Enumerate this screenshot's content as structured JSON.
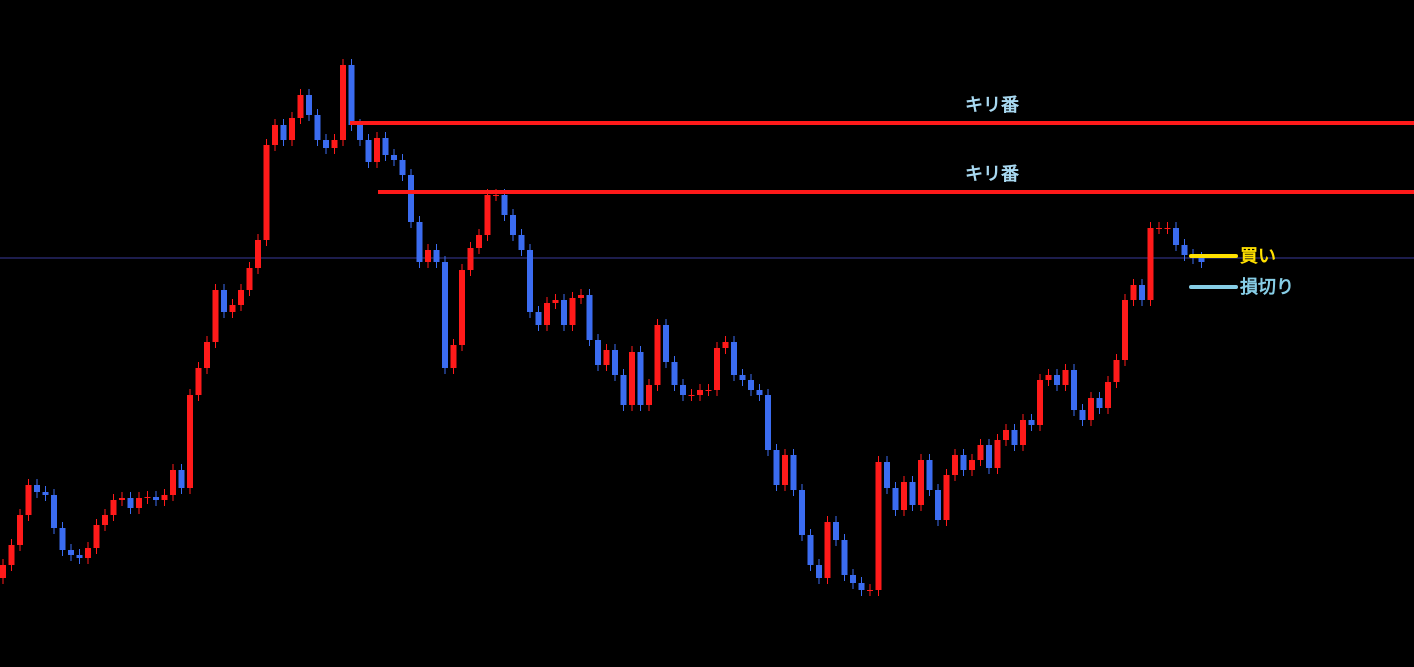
{
  "chart_data": {
    "type": "candlestick",
    "ylim": [
      0,
      667
    ],
    "up_color": "#ff1a1a",
    "down_color": "#3b6cf0",
    "open": [
      89,
      102,
      122,
      152,
      182,
      175,
      172,
      139,
      117,
      112,
      109,
      119,
      142,
      152,
      167,
      169,
      159,
      169,
      170,
      167,
      172,
      197,
      179,
      272,
      299,
      325,
      377,
      355,
      362,
      377,
      399,
      427,
      522,
      542,
      527,
      549,
      572,
      552,
      527,
      519,
      527,
      602,
      542,
      527,
      505,
      529,
      512,
      507,
      492,
      445,
      405,
      417,
      405,
      299,
      322,
      397,
      419,
      432,
      472,
      472,
      452,
      432,
      417,
      355,
      342,
      364,
      367,
      342,
      369,
      372,
      327,
      302,
      317,
      292,
      262,
      315,
      262,
      282,
      342,
      305,
      282,
      272,
      272,
      277,
      277,
      319,
      325,
      292,
      287,
      277,
      272,
      217,
      182,
      212,
      177,
      132,
      102,
      89,
      145,
      127,
      92,
      84,
      77,
      77,
      205,
      179,
      157,
      185,
      162,
      207,
      177,
      147,
      192,
      212,
      197,
      207,
      222,
      199,
      227,
      237,
      222,
      247,
      242,
      287,
      292,
      282,
      297,
      257,
      247,
      269,
      259,
      285,
      307,
      367,
      382,
      367,
      439,
      439,
      439,
      422,
      412,
      409
    ],
    "high": [
      108,
      128,
      158,
      188,
      188,
      181,
      178,
      145,
      123,
      118,
      125,
      148,
      158,
      173,
      175,
      175,
      175,
      176,
      176,
      178,
      203,
      203,
      278,
      305,
      331,
      383,
      383,
      368,
      383,
      405,
      433,
      528,
      548,
      548,
      555,
      578,
      578,
      558,
      533,
      533,
      608,
      608,
      548,
      533,
      535,
      535,
      518,
      513,
      498,
      451,
      423,
      423,
      411,
      328,
      403,
      425,
      438,
      478,
      478,
      478,
      458,
      438,
      423,
      361,
      370,
      373,
      373,
      375,
      378,
      378,
      333,
      323,
      323,
      298,
      321,
      321,
      288,
      348,
      348,
      311,
      288,
      278,
      283,
      283,
      325,
      331,
      331,
      298,
      293,
      283,
      278,
      223,
      218,
      218,
      183,
      138,
      108,
      151,
      151,
      133,
      98,
      90,
      83,
      211,
      211,
      185,
      191,
      191,
      213,
      213,
      183,
      198,
      218,
      218,
      213,
      228,
      228,
      233,
      243,
      243,
      253,
      253,
      293,
      298,
      298,
      303,
      303,
      263,
      275,
      275,
      291,
      313,
      373,
      388,
      388,
      445,
      445,
      445,
      445,
      428,
      418,
      415
    ],
    "low": [
      83,
      96,
      116,
      146,
      169,
      166,
      133,
      111,
      106,
      103,
      103,
      113,
      136,
      146,
      161,
      153,
      153,
      163,
      161,
      161,
      166,
      173,
      173,
      266,
      293,
      319,
      349,
      349,
      356,
      371,
      393,
      421,
      516,
      521,
      521,
      543,
      546,
      521,
      513,
      513,
      521,
      536,
      521,
      499,
      499,
      506,
      501,
      486,
      439,
      399,
      399,
      399,
      293,
      293,
      316,
      391,
      413,
      426,
      466,
      446,
      426,
      411,
      349,
      336,
      336,
      358,
      336,
      336,
      363,
      321,
      296,
      296,
      286,
      256,
      256,
      256,
      256,
      276,
      299,
      276,
      266,
      266,
      266,
      271,
      271,
      313,
      286,
      281,
      271,
      266,
      211,
      176,
      176,
      171,
      126,
      96,
      83,
      83,
      121,
      86,
      78,
      71,
      71,
      71,
      173,
      151,
      151,
      156,
      156,
      171,
      141,
      141,
      186,
      191,
      191,
      201,
      193,
      193,
      221,
      216,
      216,
      236,
      236,
      281,
      276,
      276,
      251,
      241,
      241,
      253,
      253,
      279,
      301,
      361,
      361,
      361,
      433,
      433,
      416,
      406,
      403,
      399
    ],
    "close": [
      102,
      122,
      152,
      182,
      175,
      172,
      139,
      117,
      112,
      109,
      119,
      142,
      152,
      167,
      169,
      159,
      169,
      170,
      167,
      172,
      197,
      179,
      272,
      299,
      325,
      377,
      355,
      362,
      377,
      399,
      427,
      522,
      542,
      527,
      549,
      572,
      552,
      527,
      519,
      527,
      602,
      542,
      527,
      505,
      529,
      512,
      507,
      492,
      445,
      405,
      417,
      405,
      299,
      322,
      397,
      419,
      432,
      472,
      472,
      452,
      432,
      417,
      355,
      342,
      364,
      367,
      342,
      369,
      372,
      327,
      302,
      317,
      292,
      262,
      315,
      262,
      282,
      342,
      305,
      282,
      272,
      272,
      277,
      277,
      319,
      325,
      292,
      287,
      277,
      272,
      217,
      182,
      212,
      177,
      132,
      102,
      89,
      145,
      127,
      92,
      84,
      77,
      77,
      205,
      179,
      157,
      185,
      162,
      207,
      177,
      147,
      192,
      212,
      197,
      207,
      222,
      199,
      227,
      237,
      222,
      247,
      242,
      287,
      292,
      282,
      297,
      257,
      247,
      269,
      259,
      285,
      307,
      367,
      382,
      367,
      439,
      439,
      439,
      422,
      412,
      409,
      405
    ],
    "price_line": {
      "value": 409,
      "color": "#3a3a9a"
    },
    "levels": [
      {
        "label": "キリ番",
        "value": 544,
        "color": "#ff1a1a"
      },
      {
        "label": "キリ番",
        "value": 475,
        "color": "#ff1a1a"
      }
    ],
    "markers": [
      {
        "label": "買い",
        "value": 411,
        "color": "#ffe000"
      },
      {
        "label": "損切り",
        "value": 380,
        "color": "#87cee6"
      }
    ]
  }
}
